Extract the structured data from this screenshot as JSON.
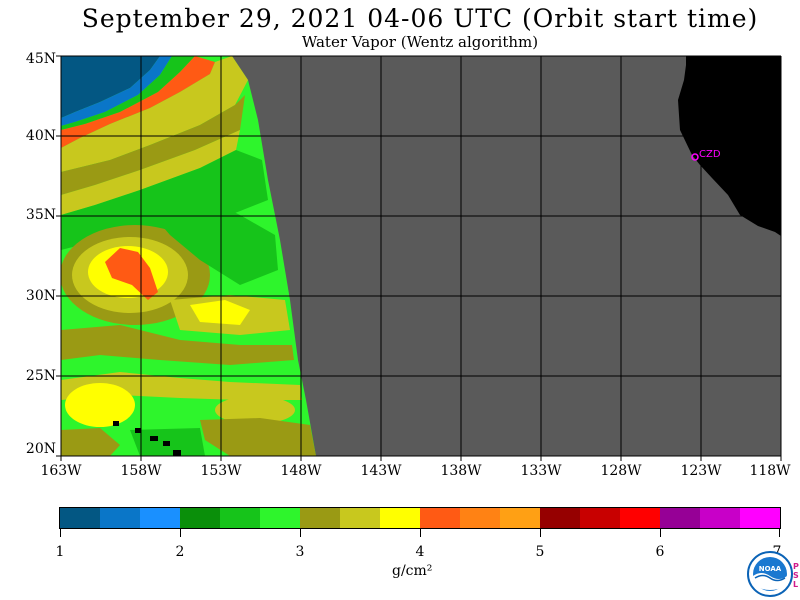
{
  "title": "September 29, 2021  04-06 UTC  (Orbit start time)",
  "subtitle": "Water Vapor (Wentz algorithm)",
  "map": {
    "lat_labels": [
      "45N",
      "40N",
      "35N",
      "30N",
      "25N",
      "20N"
    ],
    "lon_labels": [
      "163W",
      "158W",
      "153W",
      "148W",
      "143W",
      "138W",
      "133W",
      "128W",
      "123W",
      "118W"
    ],
    "station_label": "CZD",
    "colors": {
      "no_data": "#5a5a5a",
      "land": "#000000",
      "gridline": "#000000",
      "station": "#ff00ff"
    }
  },
  "colorbar": {
    "ticks": [
      "1",
      "2",
      "3",
      "4",
      "5",
      "6",
      "7"
    ],
    "colors": [
      "#035783",
      "#0a76c8",
      "#1a90ff",
      "#0a8f0a",
      "#16c41a",
      "#2ef52c",
      "#9a9a14",
      "#c8c81e",
      "#ffff00",
      "#ff5a14",
      "#ff8214",
      "#ffa014",
      "#960000",
      "#c80000",
      "#ff0000",
      "#960096",
      "#c800c8",
      "#ff00ff"
    ],
    "units": "g/cm²"
  },
  "logo": {
    "text": "NOAA",
    "side_text": "PSL"
  }
}
